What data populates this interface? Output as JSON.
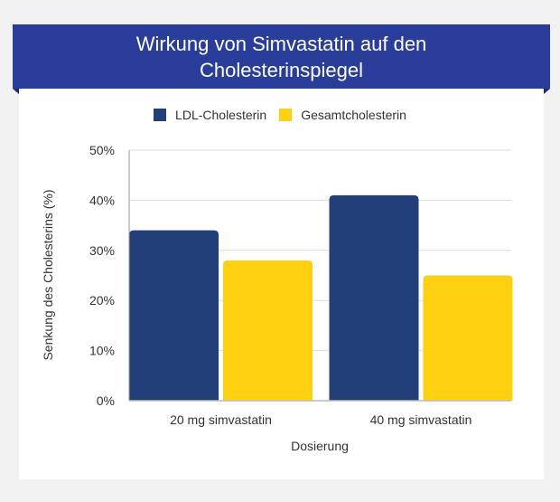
{
  "chart_data": {
    "type": "bar",
    "title": "Wirkung von Simvastatin auf den Cholesterinspiegel",
    "xlabel": "Dosierung",
    "ylabel": "Senkung des Cholesterins (%)",
    "categories": [
      "20 mg simvastatin",
      "40 mg simvastatin"
    ],
    "series": [
      {
        "name": "LDL-Cholesterin",
        "values": [
          34,
          41
        ],
        "color": "#233f7a"
      },
      {
        "name": "Gesamtcholesterin",
        "values": [
          28,
          25
        ],
        "color": "#fdd10f"
      }
    ],
    "ylim": [
      0,
      50
    ],
    "yticks": [
      "0%",
      "10%",
      "20%",
      "30%",
      "40%",
      "50%"
    ],
    "grid": true,
    "legend": "top-center"
  },
  "colors": {
    "banner": "#2b3d9a",
    "background": "#f2f2f2"
  }
}
